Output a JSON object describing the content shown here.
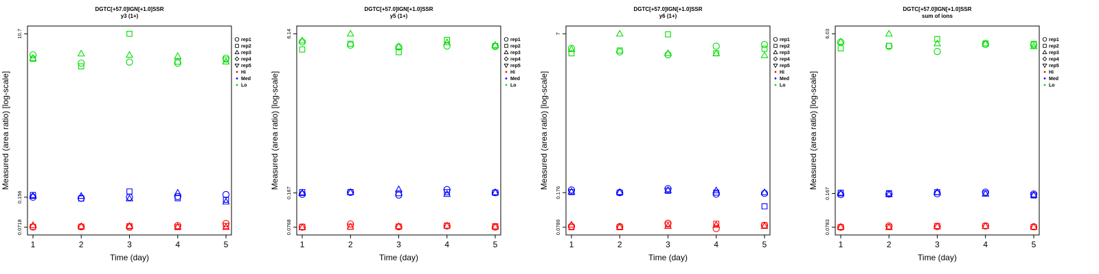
{
  "chart_data": [
    {
      "type": "scatter",
      "title": "DGTC[+57.0]IGN[+1.0]SSR",
      "subtitle": "y3 (1+)",
      "xlabel": "Time (day)",
      "ylabel": "Measured (area ratio) [log-scale]",
      "x_ticks": [
        "1",
        "2",
        "3",
        "4",
        "5"
      ],
      "y_ticks": [
        "0.0718",
        "0.156",
        "10.7"
      ],
      "y_tick_values": [
        0.0718,
        0.156,
        10.7
      ],
      "yscale": "log",
      "ylim": [
        0.0718,
        10.7
      ],
      "grid": false,
      "legend_position": "right",
      "legend": {
        "reps": [
          {
            "label": "rep1",
            "marker": "circle"
          },
          {
            "label": "rep2",
            "marker": "square"
          },
          {
            "label": "rep3",
            "marker": "triangle-up"
          },
          {
            "label": "rep4",
            "marker": "diamond"
          },
          {
            "label": "rep5",
            "marker": "triangle-down"
          }
        ],
        "groups": [
          {
            "label": "Hi",
            "color": "#ff0000"
          },
          {
            "label": "Med",
            "color": "#0000ff"
          },
          {
            "label": "Lo",
            "color": "#00dd00"
          }
        ]
      },
      "series": [
        {
          "group": "Lo",
          "rep": "rep1",
          "x": [
            1,
            2,
            3,
            4,
            5
          ],
          "y": [
            6.2,
            5.0,
            5.15,
            5.0,
            5.7
          ]
        },
        {
          "group": "Lo",
          "rep": "rep2",
          "x": [
            1,
            2,
            3,
            4,
            5
          ],
          "y": [
            5.6,
            4.6,
            10.7,
            5.2,
            5.5
          ]
        },
        {
          "group": "Lo",
          "rep": "rep3",
          "x": [
            1,
            2,
            3,
            4,
            5
          ],
          "y": [
            5.7,
            6.4,
            6.2,
            6.0,
            5.2
          ]
        },
        {
          "group": "Med",
          "rep": "rep1",
          "x": [
            1,
            2,
            3,
            4,
            5
          ],
          "y": [
            0.156,
            0.152,
            0.156,
            0.159,
            0.167
          ]
        },
        {
          "group": "Med",
          "rep": "rep2",
          "x": [
            1,
            2,
            3,
            4,
            5
          ],
          "y": [
            0.165,
            0.151,
            0.181,
            0.152,
            0.146
          ]
        },
        {
          "group": "Med",
          "rep": "rep3",
          "x": [
            1,
            2,
            3,
            4,
            5
          ],
          "y": [
            0.161,
            0.161,
            0.151,
            0.175,
            0.139
          ]
        },
        {
          "group": "Hi",
          "rep": "rep1",
          "x": [
            1,
            2,
            3,
            4,
            5
          ],
          "y": [
            0.0722,
            0.0725,
            0.0718,
            0.0748,
            0.079
          ]
        },
        {
          "group": "Hi",
          "rep": "rep2",
          "x": [
            1,
            2,
            3,
            4,
            5
          ],
          "y": [
            0.0725,
            0.0728,
            0.0735,
            0.072,
            0.074
          ]
        },
        {
          "group": "Hi",
          "rep": "rep3",
          "x": [
            1,
            2,
            3,
            4,
            5
          ],
          "y": [
            0.0755,
            0.0735,
            0.0742,
            0.0728,
            0.072
          ]
        }
      ]
    },
    {
      "type": "scatter",
      "title": "DGTC[+57.0]IGN[+1.0]SSR",
      "subtitle": "y5 (1+)",
      "xlabel": "Time (day)",
      "ylabel": "Measured (area ratio) [log-scale]",
      "x_ticks": [
        "1",
        "2",
        "3",
        "4",
        "5"
      ],
      "y_ticks": [
        "0.0768",
        "0.167",
        "6.14"
      ],
      "y_tick_values": [
        0.0768,
        0.167,
        6.14
      ],
      "yscale": "log",
      "ylim": [
        0.0768,
        6.14
      ],
      "grid": false,
      "legend_position": "right",
      "legend": {
        "reps": [
          {
            "label": "rep1",
            "marker": "circle"
          },
          {
            "label": "rep2",
            "marker": "square"
          },
          {
            "label": "rep3",
            "marker": "triangle-up"
          },
          {
            "label": "rep4",
            "marker": "diamond"
          },
          {
            "label": "rep5",
            "marker": "triangle-down"
          }
        ],
        "groups": [
          {
            "label": "Hi",
            "color": "#ff0000"
          },
          {
            "label": "Med",
            "color": "#0000ff"
          },
          {
            "label": "Lo",
            "color": "#00dd00"
          }
        ]
      },
      "series": [
        {
          "group": "Lo",
          "rep": "rep1",
          "x": [
            1,
            2,
            3,
            4,
            5
          ],
          "y": [
            5.1,
            4.75,
            4.55,
            4.65,
            4.6
          ]
        },
        {
          "group": "Lo",
          "rep": "rep2",
          "x": [
            1,
            2,
            3,
            4,
            5
          ],
          "y": [
            4.3,
            4.9,
            4.05,
            5.35,
            4.65
          ]
        },
        {
          "group": "Lo",
          "rep": "rep3",
          "x": [
            1,
            2,
            3,
            4,
            5
          ],
          "y": [
            5.25,
            6.14,
            4.6,
            5.05,
            4.75
          ]
        },
        {
          "group": "Med",
          "rep": "rep1",
          "x": [
            1,
            2,
            3,
            4,
            5
          ],
          "y": [
            0.162,
            0.169,
            0.159,
            0.18,
            0.168
          ]
        },
        {
          "group": "Med",
          "rep": "rep2",
          "x": [
            1,
            2,
            3,
            4,
            5
          ],
          "y": [
            0.17,
            0.17,
            0.166,
            0.17,
            0.168
          ]
        },
        {
          "group": "Med",
          "rep": "rep3",
          "x": [
            1,
            2,
            3,
            4,
            5
          ],
          "y": [
            0.166,
            0.17,
            0.181,
            0.163,
            0.169
          ]
        },
        {
          "group": "Hi",
          "rep": "rep1",
          "x": [
            1,
            2,
            3,
            4,
            5
          ],
          "y": [
            0.077,
            0.0825,
            0.0775,
            0.079,
            0.077
          ]
        },
        {
          "group": "Hi",
          "rep": "rep2",
          "x": [
            1,
            2,
            3,
            4,
            5
          ],
          "y": [
            0.0775,
            0.0778,
            0.078,
            0.0795,
            0.0785
          ]
        },
        {
          "group": "Hi",
          "rep": "rep3",
          "x": [
            1,
            2,
            3,
            4,
            5
          ],
          "y": [
            0.0765,
            0.0775,
            0.0785,
            0.0795,
            0.0775
          ]
        }
      ]
    },
    {
      "type": "scatter",
      "title": "DGTC[+57.0]IGN[+1.0]SSR",
      "subtitle": "y6 (1+)",
      "xlabel": "Time (day)",
      "ylabel": "Measured (area ratio) [log-scale]",
      "x_ticks": [
        "1",
        "2",
        "3",
        "4",
        "5"
      ],
      "y_ticks": [
        "0.0789",
        "0.176",
        "7"
      ],
      "y_tick_values": [
        0.0789,
        0.176,
        7
      ],
      "yscale": "log",
      "ylim": [
        0.0789,
        7
      ],
      "grid": false,
      "legend_position": "right",
      "legend": {
        "reps": [
          {
            "label": "rep1",
            "marker": "circle"
          },
          {
            "label": "rep2",
            "marker": "square"
          },
          {
            "label": "rep3",
            "marker": "triangle-up"
          },
          {
            "label": "rep4",
            "marker": "diamond"
          },
          {
            "label": "rep5",
            "marker": "triangle-down"
          }
        ],
        "groups": [
          {
            "label": "Hi",
            "color": "#ff0000"
          },
          {
            "label": "Med",
            "color": "#0000ff"
          },
          {
            "label": "Lo",
            "color": "#00dd00"
          }
        ]
      },
      "series": [
        {
          "group": "Lo",
          "rep": "rep1",
          "x": [
            1,
            2,
            3,
            4,
            5
          ],
          "y": [
            5.0,
            4.6,
            4.3,
            5.25,
            5.45
          ]
        },
        {
          "group": "Lo",
          "rep": "rep2",
          "x": [
            1,
            2,
            3,
            4,
            5
          ],
          "y": [
            4.45,
            4.75,
            6.9,
            4.45,
            4.95
          ]
        },
        {
          "group": "Lo",
          "rep": "rep3",
          "x": [
            1,
            2,
            3,
            4,
            5
          ],
          "y": [
            4.9,
            7.0,
            4.45,
            4.45,
            4.25
          ]
        },
        {
          "group": "Med",
          "rep": "rep1",
          "x": [
            1,
            2,
            3,
            4,
            5
          ],
          "y": [
            0.187,
            0.176,
            0.193,
            0.17,
            0.173
          ]
        },
        {
          "group": "Med",
          "rep": "rep2",
          "x": [
            1,
            2,
            3,
            4,
            5
          ],
          "y": [
            0.178,
            0.176,
            0.184,
            0.176,
            0.128
          ]
        },
        {
          "group": "Med",
          "rep": "rep3",
          "x": [
            1,
            2,
            3,
            4,
            5
          ],
          "y": [
            0.18,
            0.178,
            0.186,
            0.185,
            0.177
          ]
        },
        {
          "group": "Hi",
          "rep": "rep1",
          "x": [
            1,
            2,
            3,
            4,
            5
          ],
          "y": [
            0.0805,
            0.08,
            0.0865,
            0.0765,
            0.0825
          ]
        },
        {
          "group": "Hi",
          "rep": "rep2",
          "x": [
            1,
            2,
            3,
            4,
            5
          ],
          "y": [
            0.079,
            0.0789,
            0.084,
            0.0855,
            0.0825
          ]
        },
        {
          "group": "Hi",
          "rep": "rep3",
          "x": [
            1,
            2,
            3,
            4,
            5
          ],
          "y": [
            0.0835,
            0.0795,
            0.081,
            0.083,
            0.081
          ]
        }
      ]
    },
    {
      "type": "scatter",
      "title": "DGTC[+57.0]IGN[+1.0]SSR",
      "subtitle": "sum of ions",
      "xlabel": "Time (day)",
      "ylabel": "Measured (area ratio) [log-scale]",
      "x_ticks": [
        "1",
        "2",
        "3",
        "4",
        "5"
      ],
      "y_ticks": [
        "0.0783",
        "0.167",
        "6.03"
      ],
      "y_tick_values": [
        0.0783,
        0.167,
        6.03
      ],
      "yscale": "log",
      "ylim": [
        0.0783,
        6.03
      ],
      "grid": false,
      "legend_position": "right",
      "legend": {
        "reps": [
          {
            "label": "rep1",
            "marker": "circle"
          },
          {
            "label": "rep2",
            "marker": "square"
          },
          {
            "label": "rep3",
            "marker": "triangle-up"
          },
          {
            "label": "rep4",
            "marker": "diamond"
          },
          {
            "label": "rep5",
            "marker": "triangle-down"
          }
        ],
        "groups": [
          {
            "label": "Hi",
            "color": "#ff0000"
          },
          {
            "label": "Med",
            "color": "#0000ff"
          },
          {
            "label": "Lo",
            "color": "#00dd00"
          }
        ]
      },
      "series": [
        {
          "group": "Lo",
          "rep": "rep1",
          "x": [
            1,
            2,
            3,
            4,
            5
          ],
          "y": [
            5.0,
            4.55,
            4.05,
            4.75,
            4.7
          ]
        },
        {
          "group": "Lo",
          "rep": "rep2",
          "x": [
            1,
            2,
            3,
            4,
            5
          ],
          "y": [
            4.35,
            4.6,
            5.35,
            4.85,
            4.8
          ]
        },
        {
          "group": "Lo",
          "rep": "rep3",
          "x": [
            1,
            2,
            3,
            4,
            5
          ],
          "y": [
            5.05,
            6.03,
            4.85,
            4.85,
            4.55
          ]
        },
        {
          "group": "Med",
          "rep": "rep1",
          "x": [
            1,
            2,
            3,
            4,
            5
          ],
          "y": [
            0.163,
            0.165,
            0.166,
            0.172,
            0.165
          ]
        },
        {
          "group": "Med",
          "rep": "rep2",
          "x": [
            1,
            2,
            3,
            4,
            5
          ],
          "y": [
            0.17,
            0.168,
            0.172,
            0.167,
            0.16
          ]
        },
        {
          "group": "Med",
          "rep": "rep3",
          "x": [
            1,
            2,
            3,
            4,
            5
          ],
          "y": [
            0.167,
            0.164,
            0.172,
            0.166,
            0.162
          ]
        },
        {
          "group": "Hi",
          "rep": "rep1",
          "x": [
            1,
            2,
            3,
            4,
            5
          ],
          "y": [
            0.0783,
            0.0805,
            0.0795,
            0.0805,
            0.079
          ]
        },
        {
          "group": "Hi",
          "rep": "rep2",
          "x": [
            1,
            2,
            3,
            4,
            5
          ],
          "y": [
            0.0785,
            0.0785,
            0.0805,
            0.0805,
            0.0788
          ]
        },
        {
          "group": "Hi",
          "rep": "rep3",
          "x": [
            1,
            2,
            3,
            4,
            5
          ],
          "y": [
            0.0788,
            0.0785,
            0.0798,
            0.0805,
            0.079
          ]
        }
      ]
    }
  ]
}
